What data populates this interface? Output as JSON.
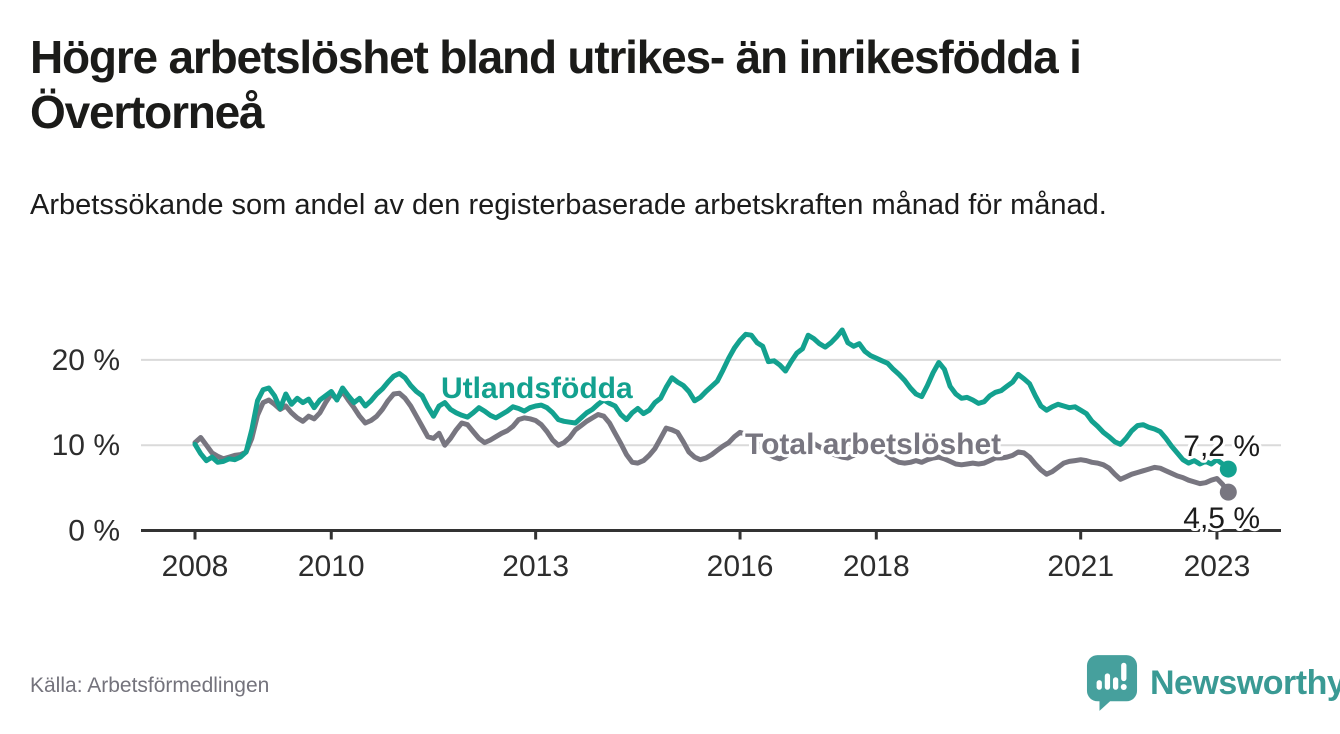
{
  "header": {
    "title": "Högre arbetslöshet bland utrikes- än inrikesfödda i Övertorneå",
    "subtitle": "Arbetssökande som andel av den registerbaserade arbetskraften månad för månad."
  },
  "chart_data": {
    "type": "line",
    "title": "Högre arbetslöshet bland utrikes- än inrikesfödda i Övertorneå",
    "x_unit": "month",
    "x_start": "2008-01",
    "x_end": "2023-03",
    "ylim": [
      0,
      25
    ],
    "grid": "horizontal",
    "legend_position": "inline-labels",
    "yticks": [
      {
        "value": 0,
        "label": "0 %"
      },
      {
        "value": 10,
        "label": "10 %"
      },
      {
        "value": 20,
        "label": "20 %"
      }
    ],
    "xticks": [
      {
        "year": 2008,
        "label": "2008"
      },
      {
        "year": 2010,
        "label": "2010"
      },
      {
        "year": 2013,
        "label": "2013"
      },
      {
        "year": 2016,
        "label": "2016"
      },
      {
        "year": 2018,
        "label": "2018"
      },
      {
        "year": 2021,
        "label": "2021"
      },
      {
        "year": 2023,
        "label": "2023"
      }
    ],
    "series": [
      {
        "name": "Total arbetslöshet",
        "color": "#787680",
        "end_label": "4,5 %",
        "values": [
          10.3,
          10.9,
          10.0,
          9.1,
          8.7,
          8.4,
          8.6,
          8.8,
          8.9,
          9.2,
          10.8,
          13.5,
          15.0,
          15.3,
          14.8,
          14.2,
          14.6,
          13.8,
          13.2,
          12.8,
          13.4,
          13.1,
          13.8,
          15.0,
          16.0,
          15.4,
          16.3,
          15.3,
          14.4,
          13.4,
          12.6,
          12.9,
          13.4,
          14.2,
          15.2,
          16.0,
          16.1,
          15.5,
          14.6,
          13.4,
          12.2,
          11.0,
          10.8,
          11.4,
          10.0,
          10.8,
          11.8,
          12.6,
          12.4,
          11.6,
          10.8,
          10.3,
          10.6,
          11.0,
          11.4,
          11.7,
          12.2,
          13.0,
          13.2,
          13.1,
          12.9,
          12.4,
          11.6,
          10.6,
          10.0,
          10.3,
          10.9,
          11.8,
          12.3,
          12.8,
          13.2,
          13.6,
          13.4,
          12.6,
          11.4,
          10.2,
          8.9,
          8.0,
          7.9,
          8.2,
          8.8,
          9.6,
          10.8,
          12.0,
          11.8,
          11.5,
          10.4,
          9.2,
          8.6,
          8.3,
          8.5,
          8.9,
          9.4,
          9.9,
          10.3,
          11.0,
          11.5,
          11.3,
          10.8,
          10.2,
          9.6,
          9.0,
          8.6,
          8.4,
          8.7,
          9.2,
          9.7,
          10.1,
          10.4,
          10.2,
          9.8,
          9.4,
          9.0,
          8.8,
          8.6,
          8.5,
          8.8,
          9.2,
          9.4,
          9.6,
          9.4,
          9.2,
          8.8,
          8.3,
          8.0,
          7.9,
          8.0,
          8.2,
          8.0,
          8.3,
          8.5,
          8.6,
          8.4,
          8.1,
          7.8,
          7.7,
          7.8,
          7.9,
          7.8,
          7.9,
          8.2,
          8.5,
          8.5,
          8.6,
          8.8,
          9.2,
          9.1,
          8.6,
          7.8,
          7.1,
          6.6,
          6.9,
          7.4,
          7.9,
          8.1,
          8.2,
          8.3,
          8.2,
          8.0,
          7.9,
          7.7,
          7.3,
          6.6,
          6.0,
          6.3,
          6.6,
          6.8,
          7.0,
          7.2,
          7.4,
          7.3,
          7.0,
          6.7,
          6.4,
          6.2,
          5.9,
          5.7,
          5.5,
          5.6,
          5.9,
          6.1,
          5.4,
          4.5
        ]
      },
      {
        "name": "Utlandsfödda",
        "color": "#13a18f",
        "end_label": "7,2 %",
        "values": [
          10.1,
          9.0,
          8.2,
          8.6,
          8.0,
          8.1,
          8.4,
          8.3,
          8.6,
          9.2,
          11.8,
          15.2,
          16.5,
          16.7,
          15.8,
          14.3,
          16.0,
          14.8,
          15.5,
          15.0,
          15.4,
          14.4,
          15.3,
          15.8,
          16.3,
          15.3,
          16.7,
          15.8,
          15.0,
          15.5,
          14.6,
          15.2,
          16.0,
          16.6,
          17.4,
          18.1,
          18.4,
          17.9,
          17.0,
          16.3,
          15.8,
          14.5,
          13.4,
          14.6,
          15.0,
          14.2,
          13.8,
          13.5,
          13.3,
          13.8,
          14.4,
          14.0,
          13.5,
          13.2,
          13.6,
          14.0,
          14.5,
          14.3,
          14.0,
          14.4,
          14.6,
          14.7,
          14.4,
          13.8,
          13.0,
          12.8,
          12.7,
          12.6,
          13.2,
          13.8,
          14.2,
          14.8,
          15.3,
          14.9,
          14.6,
          13.6,
          13.0,
          13.8,
          14.3,
          13.7,
          14.1,
          15.0,
          15.5,
          16.8,
          17.9,
          17.4,
          17.0,
          16.3,
          15.2,
          15.6,
          16.3,
          16.9,
          17.5,
          18.8,
          20.2,
          21.4,
          22.3,
          23.0,
          22.9,
          22.0,
          21.6,
          19.8,
          19.9,
          19.4,
          18.7,
          19.8,
          20.8,
          21.3,
          22.9,
          22.5,
          21.9,
          21.5,
          22.0,
          22.7,
          23.5,
          22.0,
          21.6,
          21.9,
          21.0,
          20.5,
          20.2,
          19.9,
          19.6,
          18.9,
          18.3,
          17.6,
          16.7,
          16.0,
          15.7,
          17.0,
          18.5,
          19.7,
          18.9,
          16.9,
          16.0,
          15.5,
          15.6,
          15.3,
          14.9,
          15.1,
          15.8,
          16.2,
          16.4,
          16.9,
          17.4,
          18.3,
          17.8,
          17.2,
          15.8,
          14.6,
          14.1,
          14.5,
          14.8,
          14.6,
          14.4,
          14.5,
          14.1,
          13.7,
          12.8,
          12.2,
          11.5,
          11.0,
          10.4,
          10.1,
          10.8,
          11.7,
          12.3,
          12.4,
          12.1,
          11.9,
          11.6,
          10.8,
          9.9,
          9.1,
          8.3,
          7.9,
          8.2,
          7.8,
          8.1,
          7.8,
          8.3,
          7.8,
          7.2
        ]
      }
    ],
    "colors": {
      "axis_text": "#2d2d2d",
      "axis_line": "#333333",
      "gridline": "#dadada",
      "end_label_text": "#1c1c1c"
    }
  },
  "footer": {
    "source": "Källa: Arbetsförmedlingen",
    "logo_text": "Newsworthy",
    "logo_color": "#3a9a94",
    "logo_icon_color": "#46a09d"
  }
}
